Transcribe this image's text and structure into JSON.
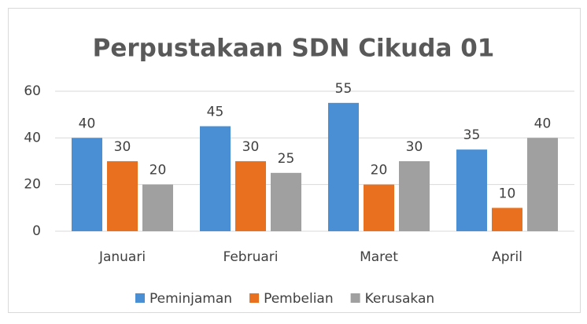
{
  "chart_data": {
    "type": "bar",
    "title": "Perpustakaan SDN Cikuda 01",
    "categories": [
      "Januari",
      "Februari",
      "Maret",
      "April"
    ],
    "series": [
      {
        "name": "Peminjaman",
        "color": "#4a8fd4",
        "values": [
          40,
          45,
          55,
          35
        ]
      },
      {
        "name": "Pembelian",
        "color": "#e8701f",
        "values": [
          30,
          30,
          20,
          10
        ]
      },
      {
        "name": "Kerusakan",
        "color": "#a0a0a0",
        "values": [
          20,
          25,
          30,
          40
        ]
      }
    ],
    "ylim": [
      0,
      60
    ],
    "yticks": [
      0,
      20,
      40,
      60
    ],
    "grid": true,
    "legend": "bottom"
  }
}
